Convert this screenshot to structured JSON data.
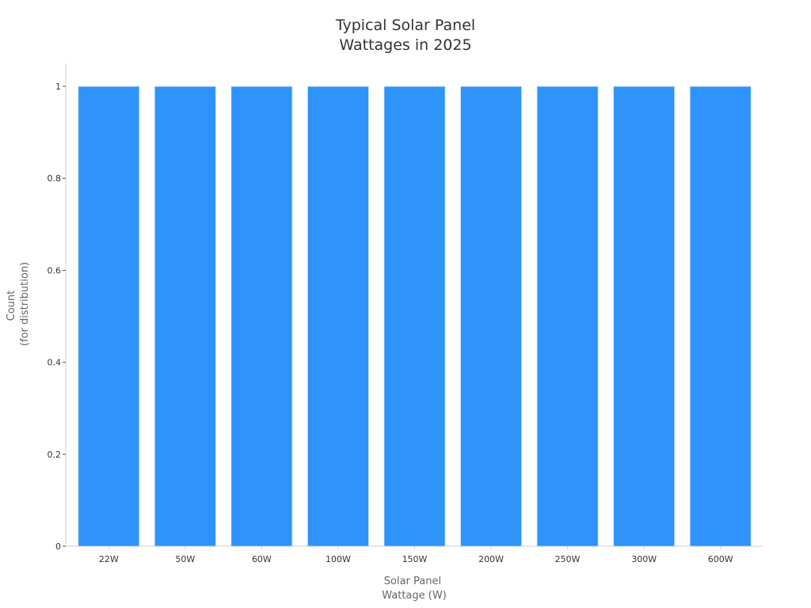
{
  "chart_data": {
    "type": "bar",
    "title_lines": [
      "Typical Solar Panel",
      "Wattages in 2025"
    ],
    "xlabel_lines": [
      "Solar Panel",
      "Wattage (W)"
    ],
    "ylabel_lines": [
      "Count",
      "(for distribution)"
    ],
    "categories": [
      "22W",
      "50W",
      "60W",
      "100W",
      "150W",
      "200W",
      "250W",
      "300W",
      "600W"
    ],
    "values": [
      1,
      1,
      1,
      1,
      1,
      1,
      1,
      1,
      1
    ],
    "ylim": [
      0,
      1.05
    ],
    "yticks": [
      0,
      0.2,
      0.4,
      0.6,
      0.8,
      1
    ],
    "ytick_labels": [
      "0",
      "0.2",
      "0.4",
      "0.6",
      "0.8",
      "1"
    ],
    "grid": false,
    "colors": {
      "bar": "#2e93fa",
      "bar_edge": "#d6e6f5",
      "axis": "#cccccc"
    }
  }
}
